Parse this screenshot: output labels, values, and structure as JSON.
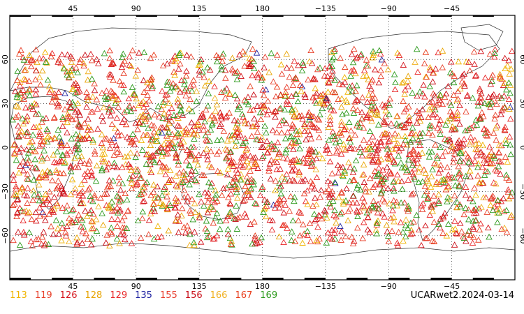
{
  "map": {
    "product": "UCARwet2",
    "date": "2024-03-14",
    "stamp_text": "UCARwet2.2024-03-14",
    "lon_ticks": [
      {
        "label": "45",
        "lon": 45
      },
      {
        "label": "90",
        "lon": 90
      },
      {
        "label": "135",
        "lon": 135
      },
      {
        "label": "180",
        "lon": 180
      },
      {
        "label": "−135",
        "lon": 225
      },
      {
        "label": "−90",
        "lon": 270
      },
      {
        "label": "−45",
        "lon": 315
      }
    ],
    "lat_ticks": [
      {
        "label": "60",
        "lat": 60
      },
      {
        "label": "30",
        "lat": 30
      },
      {
        "label": "0",
        "lat": 0
      },
      {
        "label": "−30",
        "lat": -30
      },
      {
        "label": "−60",
        "lat": -60
      }
    ],
    "extent": {
      "lon_min": 0,
      "lon_max": 360,
      "lat_min": -90,
      "lat_max": 90
    },
    "grid": true,
    "marker_shape": "triangle-icon",
    "legend": [
      {
        "label": "113",
        "color": "#f0b400"
      },
      {
        "label": "119",
        "color": "#e8402a"
      },
      {
        "label": "126",
        "color": "#d4141c"
      },
      {
        "label": "128",
        "color": "#e8a400"
      },
      {
        "label": "129",
        "color": "#e8282a"
      },
      {
        "label": "135",
        "color": "#1c20a0"
      },
      {
        "label": "155",
        "color": "#e83c2c"
      },
      {
        "label": "156",
        "color": "#c80a14"
      },
      {
        "label": "166",
        "color": "#f0b020"
      },
      {
        "label": "167",
        "color": "#e83a18"
      },
      {
        "label": "169",
        "color": "#2c9a1c"
      }
    ]
  }
}
